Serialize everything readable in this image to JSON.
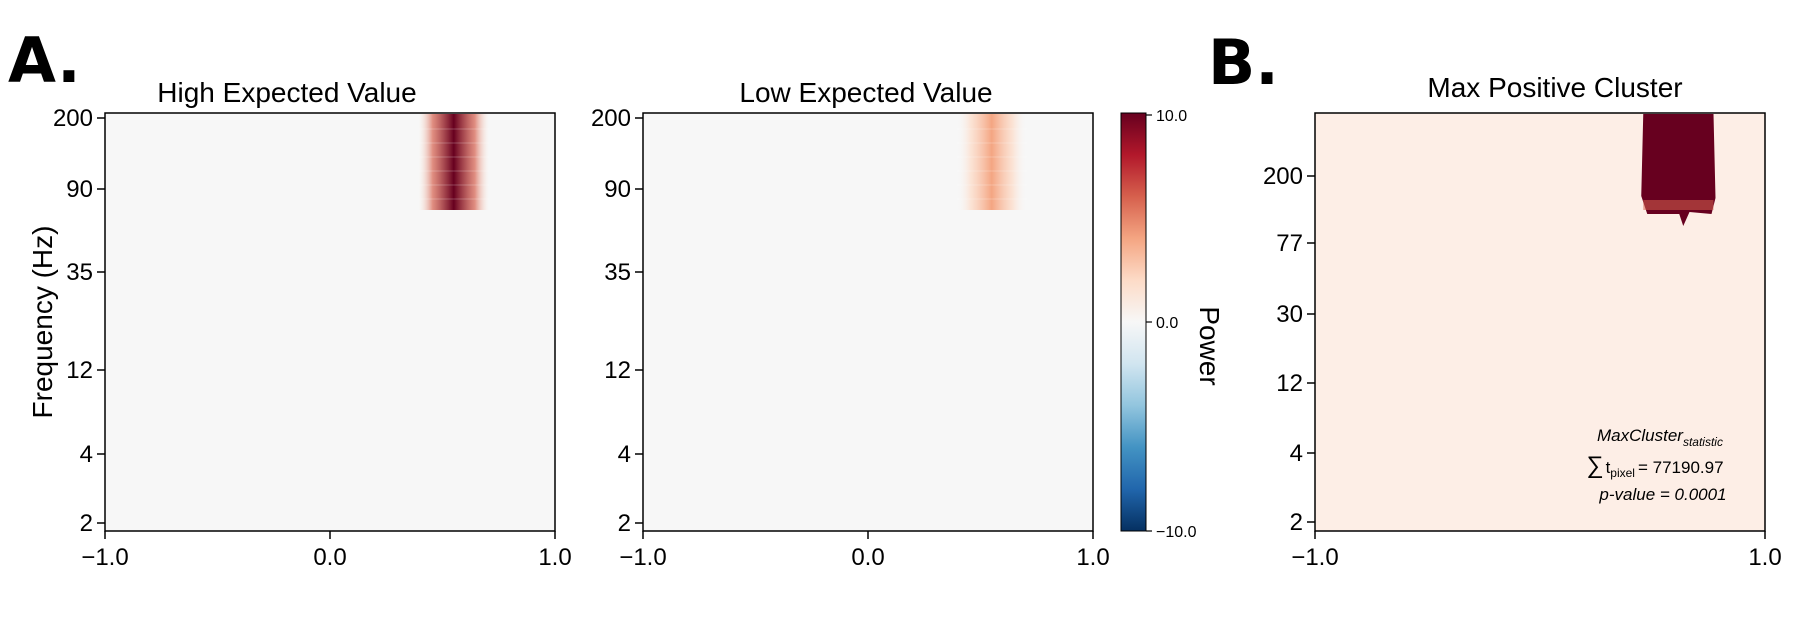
{
  "panel_letters": {
    "a": "A.",
    "b": "B."
  },
  "chart_data": [
    {
      "type": "heatmap",
      "title": "High Expected Value",
      "ylabel": "Frequency (Hz)",
      "xlim": [
        -1.0,
        1.0
      ],
      "x_ticks": [
        "−1.0",
        "0.0",
        "1.0"
      ],
      "y_ticks": [
        "200",
        "90",
        "35",
        "12",
        "4",
        "2"
      ],
      "y_scale": "log",
      "background_value": 0.0,
      "blobs": [
        {
          "x_center": 0.55,
          "x_width": 0.12,
          "freq_min": 70,
          "freq_max": 200,
          "peak_value": 10.0
        }
      ]
    },
    {
      "type": "heatmap",
      "title": "Low Expected Value",
      "xlim": [
        -1.0,
        1.0
      ],
      "x_ticks": [
        "−1.0",
        "0.0",
        "1.0"
      ],
      "y_ticks": [
        "200",
        "90",
        "35",
        "12",
        "4",
        "2"
      ],
      "y_scale": "log",
      "background_value": 0.0,
      "blobs": [
        {
          "x_center": 0.55,
          "x_width": 0.12,
          "freq_min": 70,
          "freq_max": 200,
          "peak_value": 3.5
        }
      ]
    },
    {
      "type": "heatmap",
      "title": "Max Positive Cluster",
      "xlim": [
        -1.0,
        1.0
      ],
      "x_ticks": [
        "−1.0",
        "1.0"
      ],
      "y_ticks": [
        "200",
        "77",
        "30",
        "12",
        "4",
        "2"
      ],
      "y_scale": "log",
      "background_value": 0.3,
      "cluster": {
        "x_start": 0.45,
        "x_end": 0.78,
        "freq_min": 100,
        "freq_max": 500,
        "value": 10.0
      },
      "annotation": {
        "stat_name": "MaxCluster",
        "stat_sub": "statistic",
        "sum_symbol": "∑",
        "t_text": "t",
        "t_sub": "pixel",
        "sum_value": "= 77190.97",
        "p_text": "p-value = 0.0001"
      }
    }
  ],
  "colorbar": {
    "label": "Power",
    "ticks": [
      "10.0",
      "0.0",
      "−10.0"
    ],
    "vmin": -10.0,
    "vmax": 10.0,
    "colormap": "RdBu_r",
    "color_stops": [
      "#053061",
      "#2166ac",
      "#4393c3",
      "#92c5de",
      "#d1e5f0",
      "#f7f7f7",
      "#fddbc7",
      "#f4a582",
      "#d6604d",
      "#b2182b",
      "#67001f"
    ]
  }
}
